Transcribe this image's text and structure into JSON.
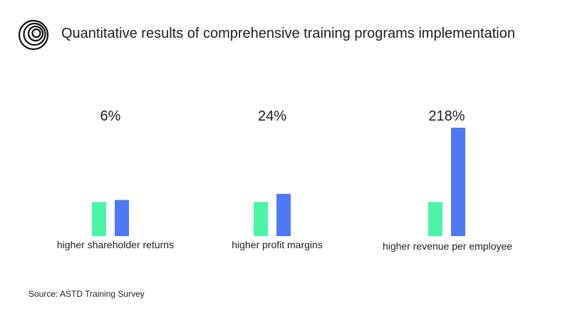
{
  "title": "Quantitative results of comprehensive training programs implementation",
  "source": "Source: ASTD Training Survey",
  "logo_icon": "concentric-swirl-icon",
  "colors": {
    "baseline": "#4cf5a6",
    "trained": "#4f78f2",
    "text": "#1f1f1f"
  },
  "chart_data": {
    "type": "bar",
    "categories": [
      "higher shareholder returns",
      "higher profit margins",
      "higher revenue per employee"
    ],
    "value_labels": [
      "6%",
      "24%",
      "218%"
    ],
    "series": [
      {
        "values": [
          100,
          100,
          100
        ]
      },
      {
        "values": [
          106,
          124,
          318
        ]
      }
    ],
    "ylim": [
      0,
      318
    ],
    "legend": "none",
    "grid": false
  }
}
